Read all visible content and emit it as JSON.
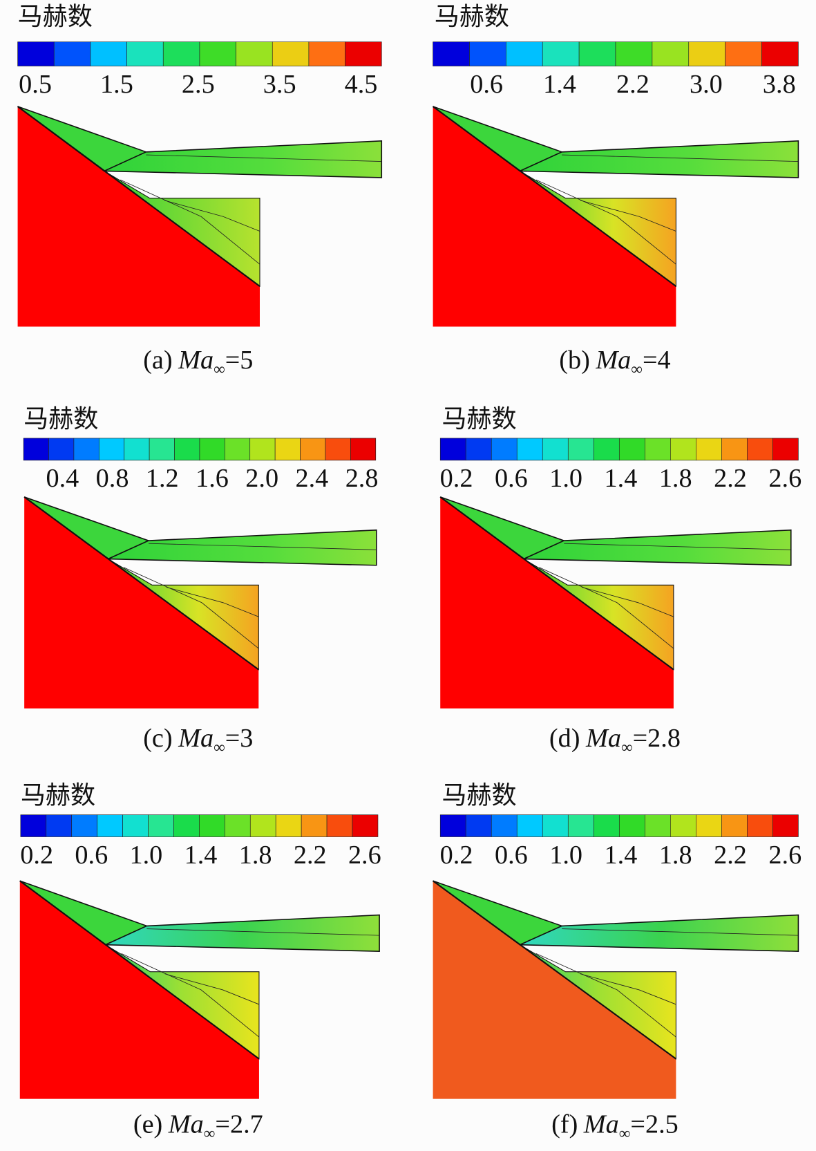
{
  "panels": [
    {
      "colorbar_title": "马赫数",
      "ticks": [
        "0.5",
        "1.5",
        "2.5",
        "3.5",
        "4.5"
      ],
      "caption": {
        "label": "(a)",
        "symbol": "Ma",
        "subscript": "∞",
        "value": "=5"
      }
    },
    {
      "colorbar_title": "马赫数",
      "ticks": [
        "0.6",
        "1.4",
        "2.2",
        "3.0",
        "3.8"
      ],
      "caption": {
        "label": "(b)",
        "symbol": "Ma",
        "subscript": "∞",
        "value": "=4"
      }
    },
    {
      "colorbar_title": "马赫数",
      "ticks": [
        "0.4",
        "0.8",
        "1.2",
        "1.6",
        "2.0",
        "2.4",
        "2.8"
      ],
      "caption": {
        "label": "(c)",
        "symbol": "Ma",
        "subscript": "∞",
        "value": "=3"
      }
    },
    {
      "colorbar_title": "马赫数",
      "ticks": [
        "0.2",
        "0.6",
        "1.0",
        "1.4",
        "1.8",
        "2.2",
        "2.6"
      ],
      "caption": {
        "label": "(d)",
        "symbol": "Ma",
        "subscript": "∞",
        "value": "=2.8"
      }
    },
    {
      "colorbar_title": "马赫数",
      "ticks": [
        "0.2",
        "0.6",
        "1.0",
        "1.4",
        "1.8",
        "2.2",
        "2.6"
      ],
      "caption": {
        "label": "(e)",
        "symbol": "Ma",
        "subscript": "∞",
        "value": "=2.7"
      }
    },
    {
      "colorbar_title": "马赫数",
      "ticks": [
        "0.2",
        "0.6",
        "1.0",
        "1.4",
        "1.8",
        "2.2",
        "2.6"
      ],
      "caption": {
        "label": "(f)",
        "symbol": "Ma",
        "subscript": "∞",
        "value": "=2.5"
      }
    }
  ]
}
